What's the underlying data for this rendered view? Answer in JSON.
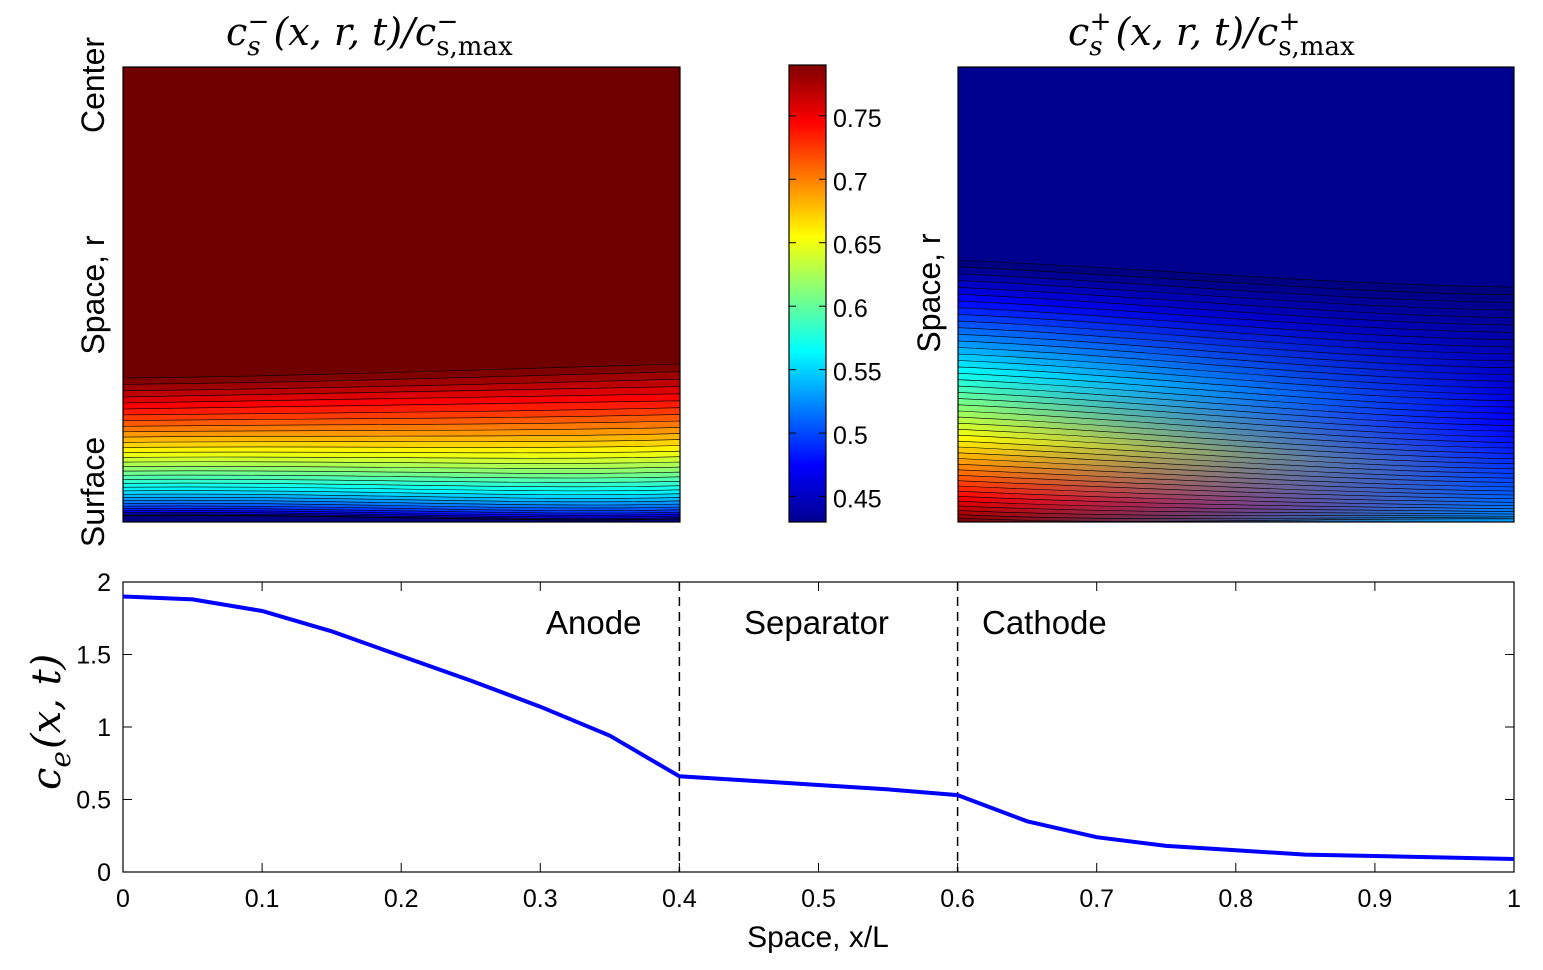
{
  "chart_data": [
    {
      "type": "heatmap",
      "title": "c_s^-(x, r, t) / c_s,max^-",
      "ylabel": "Space, r",
      "y_end_labels": [
        "Center",
        "Surface"
      ],
      "colormap": "jet",
      "x_range": [
        0,
        0.4
      ],
      "description_values": {
        "interior_value": 0.79,
        "surface_value_at_x0": 0.43,
        "surface_value_at_x04": 0.42
      }
    },
    {
      "type": "heatmap",
      "title": "c_s^+(x, r, t) / c_s,max^+",
      "ylabel": "Space, r",
      "colormap": "jet",
      "x_range": [
        0.6,
        1
      ],
      "description_values": {
        "interior_value": 0.43,
        "surface_value_at_x06": 0.79,
        "surface_value_at_x1": 0.53
      }
    },
    {
      "type": "colorbar",
      "colormap": "jet",
      "range": [
        0.43,
        0.79
      ],
      "ticks": [
        "0.45",
        "0.5",
        "0.55",
        "0.6",
        "0.65",
        "0.7",
        "0.75"
      ]
    },
    {
      "type": "line",
      "xlabel": "Space, x/L",
      "ylabel": "c_e(x, t)",
      "xlim": [
        0,
        1
      ],
      "ylim": [
        0,
        2
      ],
      "xticks": [
        "0",
        "0.1",
        "0.2",
        "0.3",
        "0.4",
        "0.5",
        "0.6",
        "0.7",
        "0.8",
        "0.9",
        "1"
      ],
      "yticks": [
        "0",
        "0.5",
        "1",
        "1.5",
        "2"
      ],
      "regions": [
        "Anode",
        "Separator",
        "Cathode"
      ],
      "boundaries": [
        0.4,
        0.6
      ],
      "series": [
        {
          "color": "#0000ff",
          "x": [
            0,
            0.05,
            0.1,
            0.15,
            0.2,
            0.25,
            0.3,
            0.35,
            0.4,
            0.45,
            0.5,
            0.55,
            0.6,
            0.65,
            0.7,
            0.75,
            0.8,
            0.85,
            0.9,
            0.95,
            1.0
          ],
          "y": [
            1.9,
            1.88,
            1.8,
            1.66,
            1.49,
            1.32,
            1.14,
            0.94,
            0.66,
            0.63,
            0.6,
            0.57,
            0.53,
            0.35,
            0.24,
            0.18,
            0.15,
            0.12,
            0.11,
            0.1,
            0.09
          ]
        }
      ]
    }
  ],
  "labels": {
    "left_title_main": "c",
    "left_title_sub": "s",
    "left_title_sup": "−",
    "left_title_mid": "(x, r, t)/c",
    "left_title_sub2": "s,max",
    "left_title_sup2": "−",
    "right_title_main": "c",
    "right_title_sub": "s",
    "right_title_sup": "+",
    "right_title_mid": "(x, r, t)/c",
    "right_title_sub2": "s,max",
    "right_title_sup2": "+",
    "center_label": "Center",
    "space_r_label": "Space, r",
    "surface_label": "Surface",
    "right_space_r_label": "Space, r",
    "ce_label_main": "c",
    "ce_label_sub": "e",
    "ce_label_args": "(x, t)",
    "xlabel": "Space, x/L",
    "anode": "Anode",
    "separator": "Separator",
    "cathode": "Cathode"
  },
  "colors": {
    "line": "#0000ff",
    "axes": "#000000",
    "background": "#ffffff"
  }
}
